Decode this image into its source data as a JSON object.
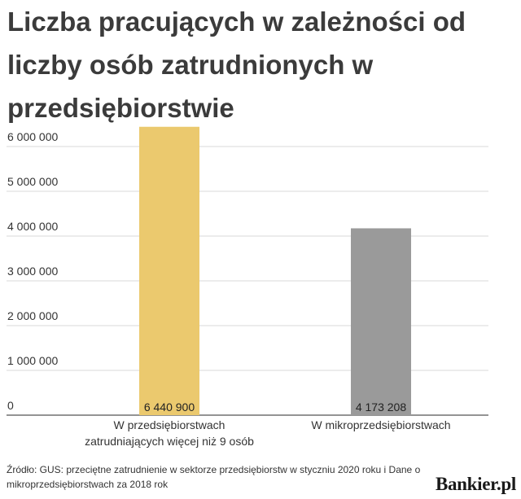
{
  "chart_data": {
    "type": "bar",
    "title": "Liczba pracujących w zależności od liczby osób zatrudnionych w przedsiębiorstwie",
    "categories": [
      [
        "W przedsiębiorstwach",
        "zatrudniających więcej niż 9 osób"
      ],
      [
        "W mikroprzedsiębiorstwach"
      ]
    ],
    "values": [
      6440900,
      4173208
    ],
    "value_labels": [
      "6 440 900",
      "4 173 208"
    ],
    "colors": [
      "#ebc96e",
      "#9a9a9a"
    ],
    "ylim": [
      0,
      6000000
    ],
    "yticks": [
      0,
      1000000,
      2000000,
      3000000,
      4000000,
      5000000,
      6000000
    ],
    "ytick_labels": [
      "0",
      "1 000 000",
      "2 000 000",
      "3 000 000",
      "4 000 000",
      "5 000 000",
      "6 000 000"
    ],
    "grid": true
  },
  "footer": {
    "source": "Źródło: GUS: przeciętne zatrudnienie w sektorze przedsiębiorstw w styczniu 2020 roku i Dane o mikroprzedsiębiorstwach za 2018 rok"
  },
  "logo": "Bankier.pl"
}
